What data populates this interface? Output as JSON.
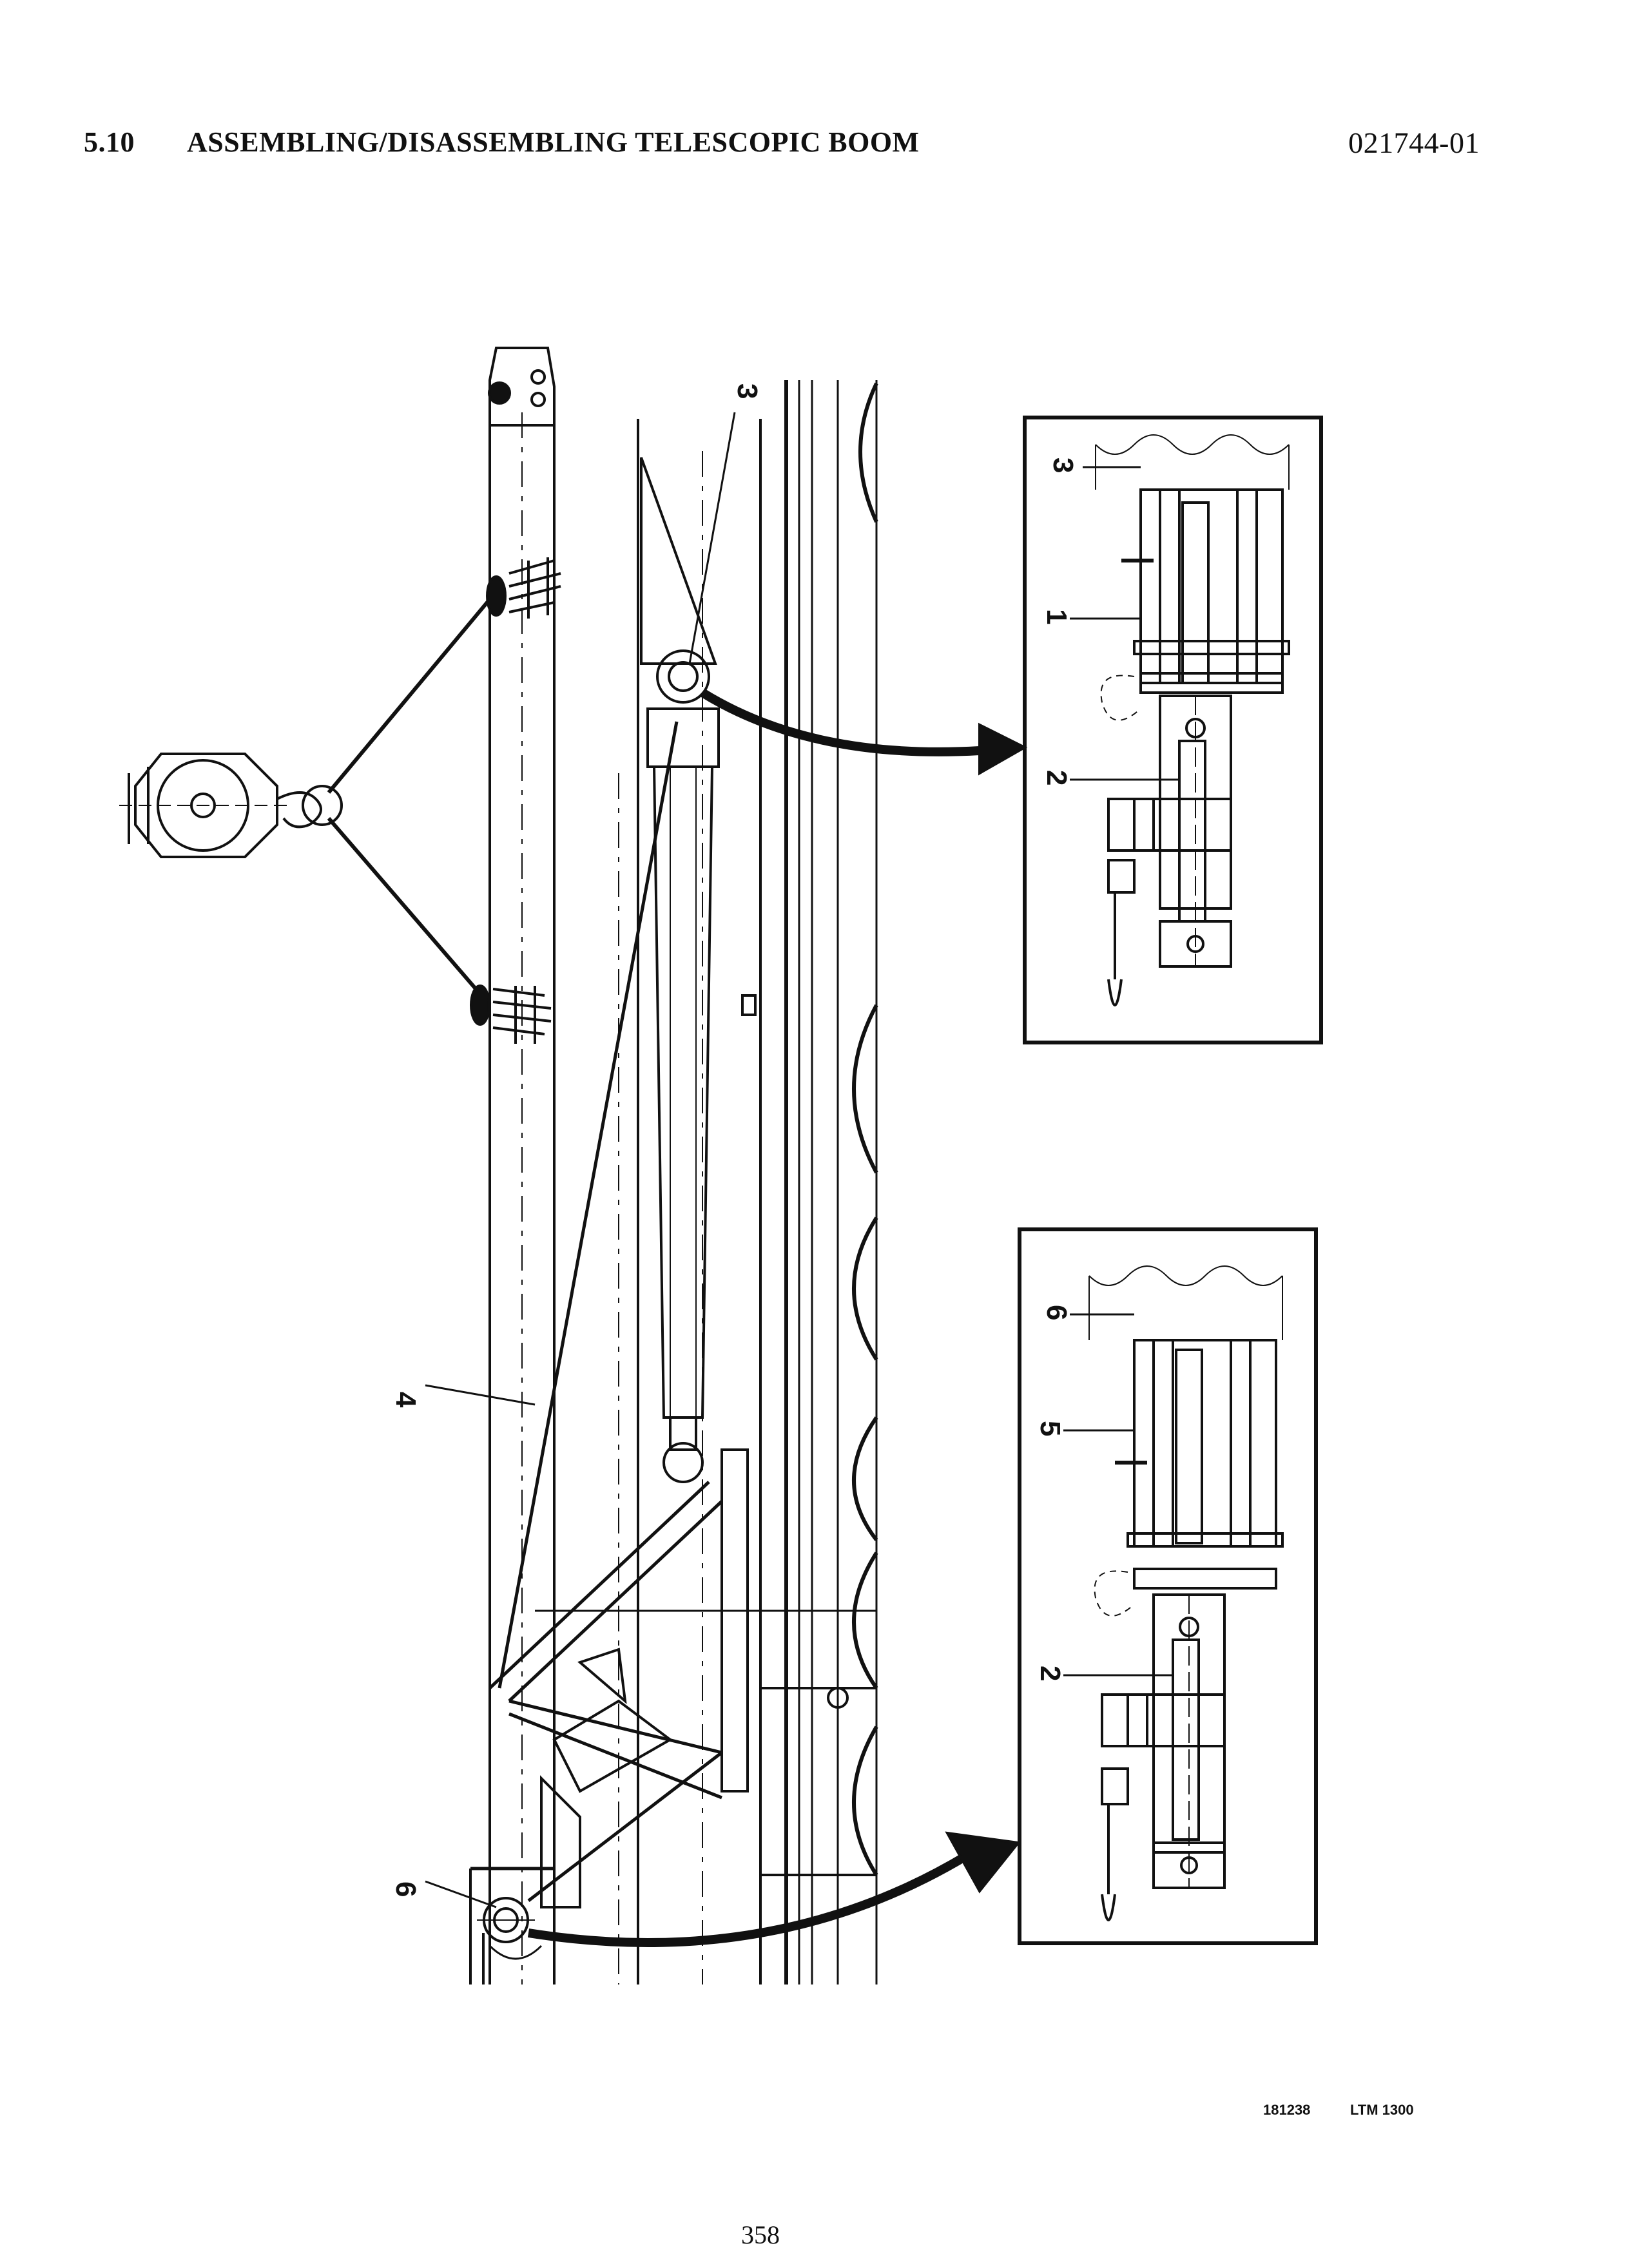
{
  "header": {
    "section_number": "5.10",
    "section_title": "ASSEMBLING/DISASSEMBLING TELESCOPIC BOOM",
    "document_code": "021744-01"
  },
  "figure": {
    "callouts": {
      "main_3": "3",
      "main_4": "4",
      "main_6": "6",
      "top_3": "3",
      "top_1": "1",
      "top_2": "2",
      "bottom_6": "6",
      "bottom_5": "5",
      "bottom_2": "2"
    },
    "reference_number": "181238",
    "model": "LTM 1300"
  },
  "footer": {
    "page_number": "358"
  },
  "colors": {
    "ink": "#111111",
    "paper": "#ffffff"
  }
}
